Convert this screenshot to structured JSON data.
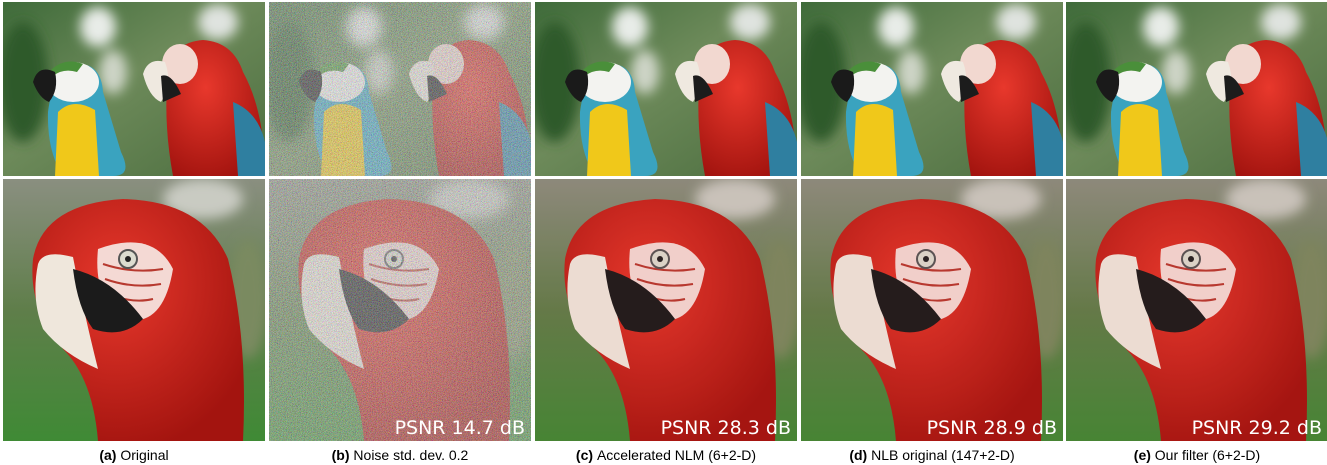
{
  "panels": [
    {
      "label": "(a)",
      "caption": "Original"
    },
    {
      "label": "(b)",
      "caption": "Noise std. dev. 0.2",
      "psnr": "PSNR 14.7 dB"
    },
    {
      "label": "(c)",
      "caption": "Accelerated NLM (6+2-D)",
      "psnr": "PSNR 28.3 dB"
    },
    {
      "label": "(d)",
      "caption": "NLB original (147+2-D)",
      "psnr": "PSNR 28.9 dB"
    },
    {
      "label": "(e)",
      "caption": "Our filter (6+2-D)",
      "psnr": "PSNR 29.2 dB"
    }
  ]
}
